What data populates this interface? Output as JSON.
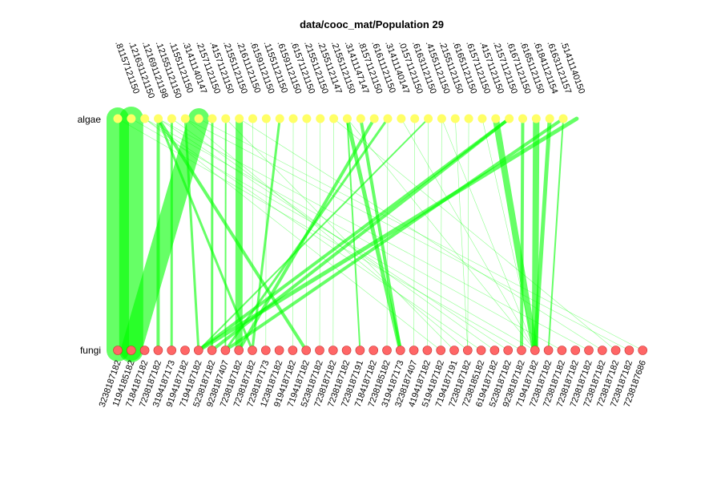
{
  "title": "data/cooc_mat/Population 29",
  "colors": {
    "edge": "#00ff00",
    "top_node": "#ffff66",
    "bottom_node": "#ff6666",
    "bottom_node_stroke": "#cc3333"
  },
  "top_row": {
    "label": "algae",
    "nodes": [
      ".81157121150",
      ".121631121150",
      ".121691121198",
      ".121551121150",
      ".11551121150",
      ".31411140147",
      ".21571121150",
      ".41571121150",
      ".21551121150",
      ".21611121150",
      ".61591121150",
      ".11551121150",
      ".61591121150",
      ".61571121150",
      ".21551121150",
      ".21551121147",
      ".21551121150",
      ".31411147147",
      ".81571121150",
      ".61611121150",
      ".31411140147",
      ".01571121150",
      ".61631121150",
      ".41551121150",
      ".21551121150",
      ".61651121150",
      ".61571121150",
      ".41571121150",
      ".21571121150",
      ".61671121150",
      ".61651121150",
      ".61841121154",
      ".61631121157",
      ".51411140150"
    ]
  },
  "bottom_row": {
    "label": "fungi",
    "nodes": [
      "3238187182",
      "1194185182",
      "7184187182",
      "7238187182",
      "3194187173",
      "9194187182",
      "7194187182",
      "5238187182",
      "9238187407",
      "7238187182",
      "7238187182",
      "7238187173",
      "1238187182",
      "9194187182",
      "7194187182",
      "5238187182",
      "7238187182",
      "7238187182",
      "7238187191",
      "7184187182",
      "7238185182",
      "3194187173",
      "3238187407",
      "4194187182",
      "5194187182",
      "7194187191",
      "7238187182",
      "7238185182",
      "6194187182",
      "5238187182",
      "9238187182",
      "7194187182",
      "7238187182",
      "7238187182",
      "7238187182",
      "7238187182",
      "7238187182",
      "7238187182",
      "7238187182",
      "7238187686"
    ]
  },
  "edges": [
    {
      "from": 0,
      "to": 0,
      "weight": 28
    },
    {
      "from": 1,
      "to": 1,
      "weight": 30
    },
    {
      "from": 6,
      "to": 1,
      "weight": 26
    },
    {
      "from": 9,
      "to": 9,
      "weight": 9
    },
    {
      "from": 3,
      "to": 3,
      "weight": 4
    },
    {
      "from": 3,
      "to": 10,
      "weight": 3
    },
    {
      "from": 3,
      "to": 14,
      "weight": 4
    },
    {
      "from": 4,
      "to": 4,
      "weight": 3
    },
    {
      "from": 5,
      "to": 6,
      "weight": 3
    },
    {
      "from": 7,
      "to": 7,
      "weight": 3
    },
    {
      "from": 8,
      "to": 8,
      "weight": 2
    },
    {
      "from": 10,
      "to": 10,
      "weight": 1
    },
    {
      "from": 11,
      "to": 11,
      "weight": 1
    },
    {
      "from": 12,
      "to": 10,
      "weight": 3
    },
    {
      "from": 13,
      "to": 13,
      "weight": 1
    },
    {
      "from": 15,
      "to": 15,
      "weight": 1
    },
    {
      "from": 16,
      "to": 16,
      "weight": 1
    },
    {
      "from": 17,
      "to": 21,
      "weight": 5
    },
    {
      "from": 17,
      "to": 18,
      "weight": 2
    },
    {
      "from": 18,
      "to": 21,
      "weight": 4
    },
    {
      "from": 19,
      "to": 9,
      "weight": 4
    },
    {
      "from": 20,
      "to": 20,
      "weight": 1
    },
    {
      "from": 22,
      "to": 22,
      "weight": 1
    },
    {
      "from": 23,
      "to": 23,
      "weight": 1
    },
    {
      "from": 24,
      "to": 24,
      "weight": 1
    },
    {
      "from": 25,
      "to": 26,
      "weight": 1
    },
    {
      "from": 26,
      "to": 26,
      "weight": 1
    },
    {
      "from": 27,
      "to": 31,
      "weight": 1
    },
    {
      "from": 28,
      "to": 31,
      "weight": 8
    },
    {
      "from": 29,
      "to": 7,
      "weight": 4
    },
    {
      "from": 30,
      "to": 30,
      "weight": 4
    },
    {
      "from": 29,
      "to": 6,
      "weight": 4
    },
    {
      "from": 31,
      "to": 31,
      "weight": 8
    },
    {
      "from": 32,
      "to": 31,
      "weight": 5
    },
    {
      "from": 33,
      "to": 32,
      "weight": 2
    },
    {
      "from": 34,
      "to": 6,
      "weight": 5
    },
    {
      "from": 33,
      "to": 8,
      "weight": 4
    },
    {
      "from": 20,
      "to": 8,
      "weight": 3
    },
    {
      "from": 23,
      "to": 6,
      "weight": 2
    },
    {
      "from": 2,
      "to": 24,
      "weight": 1
    },
    {
      "from": 2,
      "to": 27,
      "weight": 1
    },
    {
      "from": 2,
      "to": 33,
      "weight": 1
    },
    {
      "from": 3,
      "to": 35,
      "weight": 1
    },
    {
      "from": 5,
      "to": 38,
      "weight": 1
    },
    {
      "from": 6,
      "to": 39,
      "weight": 1
    },
    {
      "from": 4,
      "to": 28,
      "weight": 1
    },
    {
      "from": 8,
      "to": 25,
      "weight": 1
    },
    {
      "from": 9,
      "to": 36,
      "weight": 1
    },
    {
      "from": 16,
      "to": 37,
      "weight": 1
    },
    {
      "from": 17,
      "to": 31,
      "weight": 1
    },
    {
      "from": 1,
      "to": 31,
      "weight": 1
    },
    {
      "from": 0,
      "to": 30,
      "weight": 1
    },
    {
      "from": 14,
      "to": 14,
      "weight": 1
    },
    {
      "from": 21,
      "to": 31,
      "weight": 1
    },
    {
      "from": 24,
      "to": 31,
      "weight": 1
    },
    {
      "from": 5,
      "to": 26,
      "weight": 1
    },
    {
      "from": 3,
      "to": 29,
      "weight": 1
    }
  ]
}
